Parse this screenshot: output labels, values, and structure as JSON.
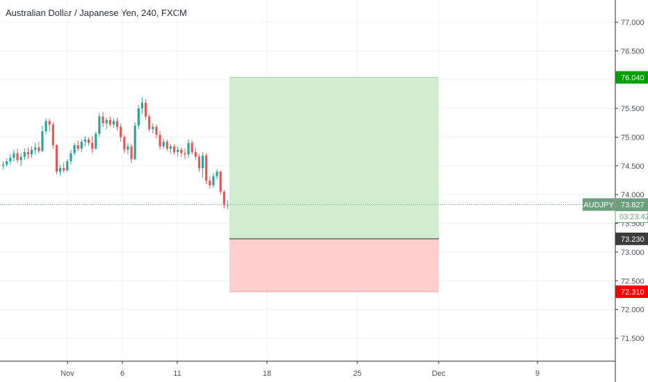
{
  "header": {
    "title": "Australian Dollar / Japanese Yen, 240, FXCM"
  },
  "colors": {
    "up": "#26a69a",
    "down": "#ef5350",
    "profit_zone": "#cdeccd",
    "loss_zone": "#ffcccc",
    "target_tag": "#00a000",
    "stop_tag": "#ff0000",
    "entry_tag": "#3c3c3c",
    "price_tag": "#6b9f7e",
    "grid": "#eef0f3"
  },
  "chart_data": {
    "type": "candlestick",
    "symbol": "AUDJPY",
    "timeframe": "240",
    "source": "FXCM",
    "y_axis": {
      "ticks": [
        "77.000",
        "76.500",
        "76.000",
        "75.500",
        "75.000",
        "74.500",
        "74.000",
        "73.500",
        "73.000",
        "72.500",
        "72.000",
        "71.500"
      ],
      "range": [
        70.9,
        77.25
      ]
    },
    "x_axis": {
      "ticks": [
        "Nov",
        "6",
        "11",
        "18",
        "25",
        "Dec",
        "9"
      ]
    },
    "position": {
      "type": "long",
      "entry": 73.23,
      "entry_label": "73.230",
      "target": 76.04,
      "target_label": "76.040",
      "stop": 72.31,
      "stop_label": "72.310"
    },
    "last_price": {
      "symbol_label": "AUDJPY",
      "value": 73.827,
      "value_label": "73.827",
      "countdown": "03:23:42"
    },
    "ohlc": [
      [
        74.5,
        74.58,
        74.44,
        74.52
      ],
      [
        74.52,
        74.63,
        74.48,
        74.58
      ],
      [
        74.58,
        74.7,
        74.52,
        74.64
      ],
      [
        74.64,
        74.78,
        74.58,
        74.72
      ],
      [
        74.72,
        74.8,
        74.55,
        74.6
      ],
      [
        74.6,
        74.72,
        74.5,
        74.66
      ],
      [
        74.66,
        74.8,
        74.6,
        74.74
      ],
      [
        74.74,
        74.82,
        74.62,
        74.7
      ],
      [
        74.7,
        74.84,
        74.64,
        74.78
      ],
      [
        74.78,
        74.9,
        74.7,
        74.82
      ],
      [
        74.82,
        74.92,
        74.72,
        74.76
      ],
      [
        74.76,
        75.2,
        74.74,
        75.1
      ],
      [
        75.1,
        75.32,
        75.05,
        75.28
      ],
      [
        75.28,
        75.32,
        75.1,
        75.22
      ],
      [
        75.22,
        75.26,
        74.8,
        74.86
      ],
      [
        74.86,
        74.88,
        74.35,
        74.4
      ],
      [
        74.4,
        74.52,
        74.33,
        74.46
      ],
      [
        74.46,
        74.56,
        74.38,
        74.42
      ],
      [
        74.42,
        74.62,
        74.4,
        74.58
      ],
      [
        74.58,
        74.78,
        74.52,
        74.72
      ],
      [
        74.72,
        74.9,
        74.68,
        74.86
      ],
      [
        74.86,
        74.94,
        74.76,
        74.8
      ],
      [
        74.8,
        74.96,
        74.74,
        74.92
      ],
      [
        74.92,
        75.02,
        74.84,
        74.96
      ],
      [
        74.96,
        75.0,
        74.85,
        74.9
      ],
      [
        74.9,
        75.02,
        74.72,
        74.8
      ],
      [
        74.8,
        75.1,
        74.78,
        75.06
      ],
      [
        75.06,
        75.42,
        75.0,
        75.36
      ],
      [
        75.36,
        75.44,
        75.18,
        75.24
      ],
      [
        75.24,
        75.34,
        75.14,
        75.3
      ],
      [
        75.3,
        75.36,
        75.18,
        75.22
      ],
      [
        75.22,
        75.32,
        75.16,
        75.28
      ],
      [
        75.28,
        75.34,
        75.12,
        75.18
      ],
      [
        75.18,
        75.24,
        74.92,
        75.0
      ],
      [
        75.0,
        75.04,
        74.72,
        74.78
      ],
      [
        74.78,
        74.9,
        74.7,
        74.84
      ],
      [
        74.84,
        74.88,
        74.55,
        74.62
      ],
      [
        74.62,
        75.26,
        74.6,
        75.2
      ],
      [
        75.2,
        75.56,
        75.14,
        75.5
      ],
      [
        75.5,
        75.7,
        75.4,
        75.6
      ],
      [
        75.6,
        75.66,
        75.3,
        75.36
      ],
      [
        75.36,
        75.4,
        75.1,
        75.14
      ],
      [
        75.14,
        75.24,
        75.06,
        75.18
      ],
      [
        75.18,
        75.22,
        74.98,
        75.04
      ],
      [
        75.04,
        75.1,
        74.78,
        74.84
      ],
      [
        74.84,
        74.98,
        74.8,
        74.92
      ],
      [
        74.92,
        74.96,
        74.76,
        74.8
      ],
      [
        74.8,
        74.88,
        74.72,
        74.84
      ],
      [
        74.84,
        74.88,
        74.7,
        74.74
      ],
      [
        74.74,
        74.84,
        74.66,
        74.78
      ],
      [
        74.78,
        74.82,
        74.66,
        74.72
      ],
      [
        74.72,
        74.8,
        74.62,
        74.7
      ],
      [
        74.7,
        74.96,
        74.64,
        74.9
      ],
      [
        74.9,
        74.94,
        74.7,
        74.74
      ],
      [
        74.74,
        74.82,
        74.6,
        74.66
      ],
      [
        74.66,
        74.7,
        74.4,
        74.46
      ],
      [
        74.46,
        74.74,
        74.3,
        74.68
      ],
      [
        74.68,
        74.72,
        74.18,
        74.24
      ],
      [
        74.24,
        74.32,
        74.1,
        74.16
      ],
      [
        74.16,
        74.38,
        74.12,
        74.32
      ],
      [
        74.32,
        74.44,
        74.26,
        74.4
      ],
      [
        74.4,
        74.42,
        74.0,
        74.05
      ],
      [
        74.05,
        74.08,
        73.76,
        73.82
      ],
      [
        73.82,
        73.9,
        73.74,
        73.82
      ]
    ]
  }
}
